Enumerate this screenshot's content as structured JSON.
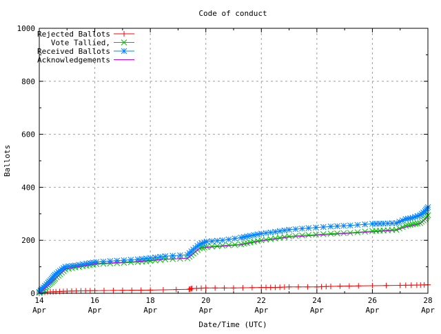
{
  "chart_data": {
    "type": "line",
    "title": "Code of conduct",
    "xlabel": "Date/Time (UTC)",
    "ylabel": "Ballots",
    "xlim": [
      14,
      28
    ],
    "ylim": [
      0,
      1000
    ],
    "x_unit": "day of April",
    "grid": true,
    "legend_placement": "top-left",
    "x_ticks": [
      {
        "value": 14,
        "label1": "14",
        "label2": "Apr"
      },
      {
        "value": 16,
        "label1": "16",
        "label2": "Apr"
      },
      {
        "value": 18,
        "label1": "18",
        "label2": "Apr"
      },
      {
        "value": 20,
        "label1": "20",
        "label2": "Apr"
      },
      {
        "value": 22,
        "label1": "22",
        "label2": "Apr"
      },
      {
        "value": 24,
        "label1": "24",
        "label2": "Apr"
      },
      {
        "value": 26,
        "label1": "26",
        "label2": "Apr"
      },
      {
        "value": 28,
        "label1": "28",
        "label2": "Apr"
      }
    ],
    "y_ticks": [
      0,
      200,
      400,
      600,
      800,
      1000
    ],
    "series": [
      {
        "name": "Rejected Ballots",
        "color": "#ff0000",
        "marker": "plus",
        "x": [
          14,
          14.3,
          14.6,
          15,
          15.5,
          16,
          17,
          18,
          19.4,
          19.5,
          20,
          21,
          22,
          22.5,
          23,
          24,
          24.5,
          25.5,
          27,
          27.6,
          28
        ],
        "y": [
          0,
          5,
          6,
          8,
          9,
          10,
          11,
          12,
          15,
          18,
          20,
          20,
          22,
          22,
          24,
          24,
          26,
          28,
          30,
          31,
          32
        ]
      },
      {
        "name": "Vote Tallied,",
        "color": "#00c000",
        "marker": "cross",
        "x": [
          14,
          14.15,
          14.32,
          14.45,
          14.57,
          14.75,
          14.94,
          15.3,
          15.7,
          16.06,
          16.8,
          17.55,
          18.0,
          18.54,
          19.34,
          19.55,
          19.78,
          20.03,
          20.6,
          21.27,
          21.6,
          22,
          22.5,
          23,
          23.7,
          24.5,
          25.2,
          26,
          26.4,
          26.86,
          27.2,
          27.45,
          27.72,
          27.9,
          28
        ],
        "y": [
          2,
          15,
          30,
          42,
          55,
          72,
          90,
          98,
          104,
          110,
          114,
          118,
          122,
          128,
          132,
          150,
          170,
          175,
          180,
          185,
          192,
          200,
          207,
          215,
          220,
          225,
          228,
          235,
          237,
          240,
          255,
          260,
          265,
          280,
          295
        ]
      },
      {
        "name": "Received Ballots",
        "color": "#0080ff",
        "marker": "star",
        "x": [
          14,
          14.15,
          14.32,
          14.45,
          14.57,
          14.75,
          14.94,
          15.3,
          15.7,
          16.06,
          16.8,
          17.55,
          18.0,
          18.54,
          19.34,
          19.55,
          19.78,
          20.03,
          20.6,
          21.27,
          21.6,
          22,
          22.5,
          23,
          23.7,
          24.5,
          25.2,
          26,
          26.4,
          26.86,
          27.2,
          27.45,
          27.72,
          27.9,
          28
        ],
        "y": [
          5,
          22,
          40,
          55,
          70,
          85,
          100,
          105,
          112,
          118,
          123,
          128,
          133,
          140,
          145,
          165,
          185,
          195,
          200,
          210,
          217,
          225,
          232,
          240,
          246,
          252,
          256,
          262,
          263,
          265,
          280,
          285,
          295,
          310,
          325
        ]
      },
      {
        "name": "Acknowledgements",
        "color": "#c000ff",
        "marker": "none",
        "x": [
          14,
          14.32,
          14.57,
          14.94,
          16.06,
          17.55,
          18.54,
          19.34,
          19.78,
          20.03,
          21.27,
          22,
          23,
          24.5,
          26,
          26.86,
          27.2,
          27.72,
          28
        ],
        "y": [
          0,
          30,
          55,
          92,
          112,
          120,
          128,
          132,
          170,
          173,
          183,
          198,
          212,
          222,
          232,
          238,
          250,
          262,
          290
        ]
      }
    ]
  }
}
